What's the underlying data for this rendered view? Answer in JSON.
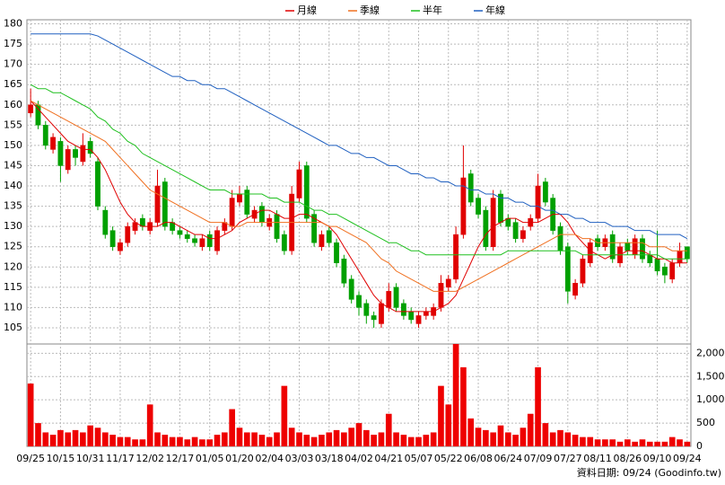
{
  "chart_data": [
    {
      "type": "candlestick",
      "categories": [
        "09/25",
        null,
        null,
        null,
        "10/15",
        null,
        null,
        null,
        "10/31",
        null,
        null,
        null,
        "11/17",
        null,
        null,
        null,
        "12/02",
        null,
        null,
        null,
        "12/17",
        null,
        null,
        null,
        "01/05",
        null,
        null,
        null,
        "01/20",
        null,
        null,
        null,
        "02/04",
        null,
        null,
        null,
        "03/03",
        null,
        null,
        null,
        "03/18",
        null,
        null,
        null,
        "04/02",
        null,
        null,
        null,
        "04/21",
        null,
        null,
        null,
        "05/07",
        null,
        null,
        null,
        "05/22",
        null,
        null,
        null,
        "06/08",
        null,
        null,
        null,
        "06/24",
        null,
        null,
        null,
        "07/09",
        null,
        null,
        null,
        "07/27",
        null,
        null,
        null,
        "08/11",
        null,
        null,
        null,
        "08/26",
        null,
        null,
        null,
        "09/10",
        null,
        null,
        null,
        "09/24"
      ],
      "open": [
        158,
        160,
        155,
        149,
        151,
        144,
        149,
        146,
        151,
        146,
        134,
        129,
        124,
        126,
        129,
        132,
        129,
        131,
        141,
        131,
        129,
        128,
        127,
        125,
        128,
        124,
        129,
        130,
        136,
        139,
        132,
        135,
        130,
        133,
        128,
        124,
        137,
        145,
        133,
        125,
        129,
        126,
        122,
        117,
        113,
        111,
        108,
        106,
        110,
        115,
        111,
        109,
        106,
        108,
        108,
        110,
        115,
        117,
        128,
        143,
        137,
        134,
        125,
        138,
        132,
        131,
        127,
        130,
        132,
        141,
        137,
        130,
        125,
        113,
        116,
        121,
        127,
        125,
        128,
        121,
        126,
        123,
        127,
        123,
        122,
        120,
        117,
        121,
        125
      ],
      "high": [
        164,
        161,
        156,
        153,
        152,
        150,
        150,
        153,
        152,
        147,
        135,
        130,
        127,
        131,
        132,
        133,
        132,
        144,
        142,
        132,
        130,
        129,
        128,
        128,
        129,
        130,
        132,
        139,
        140,
        140,
        135,
        136,
        133,
        134,
        129,
        140,
        146,
        146,
        134,
        129,
        130,
        127,
        123,
        118,
        114,
        112,
        109,
        112,
        116,
        116,
        112,
        110,
        109,
        110,
        111,
        118,
        118,
        130,
        150,
        144,
        138,
        135,
        139,
        139,
        133,
        132,
        130,
        133,
        143,
        142,
        138,
        131,
        126,
        117,
        123,
        127,
        128,
        128,
        129,
        126,
        127,
        128,
        128,
        124,
        129,
        121,
        122,
        126,
        125
      ],
      "low": [
        157,
        154,
        149,
        148,
        141,
        143,
        145,
        145,
        147,
        134,
        127,
        124,
        123,
        125,
        128,
        129,
        128,
        130,
        129,
        128,
        127,
        126,
        125,
        124,
        124,
        123,
        128,
        129,
        135,
        132,
        131,
        130,
        129,
        126,
        123,
        123,
        136,
        131,
        125,
        124,
        125,
        120,
        115,
        111,
        108,
        106,
        105,
        105,
        109,
        109,
        107,
        106,
        105,
        107,
        107,
        109,
        114,
        116,
        127,
        135,
        132,
        124,
        124,
        130,
        129,
        126,
        126,
        129,
        131,
        135,
        128,
        123,
        111,
        112,
        115,
        120,
        124,
        124,
        121,
        120,
        123,
        122,
        121,
        120,
        118,
        116,
        116,
        120,
        121
      ],
      "close": [
        160,
        155,
        150,
        152,
        145,
        149,
        147,
        150,
        148,
        135,
        128,
        125,
        126,
        130,
        131,
        130,
        131,
        140,
        130,
        129,
        128,
        127,
        126,
        127,
        125,
        129,
        131,
        137,
        138,
        133,
        134,
        131,
        132,
        127,
        124,
        138,
        144,
        132,
        126,
        128,
        126,
        121,
        116,
        112,
        110,
        108,
        107,
        111,
        114,
        110,
        108,
        107,
        108,
        109,
        110,
        116,
        117,
        128,
        142,
        136,
        133,
        125,
        137,
        131,
        130,
        127,
        129,
        132,
        140,
        136,
        129,
        124,
        114,
        116,
        122,
        126,
        125,
        127,
        122,
        125,
        124,
        127,
        122,
        121,
        119,
        118,
        121,
        124,
        122
      ],
      "up_color": "#e00000",
      "down_color": "#00a000",
      "series": [
        {
          "name": "月線",
          "color": "#e00000",
          "values": [
            161,
            159,
            157,
            155,
            153,
            151,
            150,
            149,
            149,
            147,
            144,
            140,
            136,
            133,
            131,
            130,
            130,
            130,
            131,
            131,
            130,
            129,
            128,
            128,
            127,
            127,
            128,
            129,
            131,
            132,
            133,
            134,
            134,
            133,
            132,
            132,
            133,
            133,
            132,
            131,
            130,
            128,
            125,
            122,
            119,
            116,
            113,
            111,
            110,
            109,
            109,
            109,
            109,
            109,
            109,
            110,
            111,
            113,
            117,
            121,
            125,
            128,
            130,
            131,
            132,
            132,
            131,
            131,
            131,
            132,
            133,
            133,
            131,
            128,
            126,
            124,
            123,
            122,
            123,
            123,
            124,
            124,
            124,
            123,
            122,
            122,
            121,
            121,
            121
          ]
        },
        {
          "name": "季線",
          "color": "#f07020",
          "values": [
            161,
            160,
            159,
            158,
            157,
            156,
            155,
            154,
            153,
            152,
            151,
            149,
            147,
            145,
            143,
            141,
            139,
            138,
            137,
            136,
            135,
            134,
            133,
            132,
            131,
            131,
            131,
            130,
            130,
            131,
            131,
            131,
            131,
            131,
            131,
            131,
            131,
            131,
            131,
            131,
            130,
            130,
            129,
            128,
            127,
            126,
            124,
            122,
            121,
            119,
            118,
            117,
            116,
            115,
            114,
            114,
            114,
            114,
            115,
            116,
            117,
            118,
            119,
            120,
            121,
            122,
            123,
            124,
            125,
            126,
            127,
            128,
            128,
            128,
            127,
            127,
            126,
            126,
            126,
            126,
            126,
            126,
            126,
            125,
            125,
            125,
            124,
            124,
            124
          ]
        },
        {
          "name": "半年",
          "color": "#20c020",
          "values": [
            165,
            164,
            164,
            163,
            163,
            162,
            161,
            160,
            159,
            157,
            156,
            154,
            153,
            151,
            150,
            148,
            147,
            146,
            145,
            144,
            143,
            142,
            141,
            140,
            139,
            139,
            139,
            138,
            138,
            138,
            138,
            138,
            137,
            137,
            136,
            136,
            136,
            135,
            134,
            134,
            133,
            133,
            132,
            131,
            130,
            129,
            128,
            127,
            126,
            126,
            125,
            124,
            124,
            123,
            123,
            123,
            123,
            123,
            123,
            123,
            123,
            123,
            123,
            123,
            124,
            124,
            124,
            124,
            124,
            124,
            124,
            124,
            124,
            124,
            123,
            123,
            123,
            123,
            123,
            123,
            123,
            123,
            123,
            123,
            123,
            122,
            122,
            122,
            122
          ]
        },
        {
          "name": "年線",
          "color": "#2060c0",
          "values": [
            177.5,
            177.5,
            177.5,
            177.5,
            177.5,
            177.5,
            177.5,
            177.5,
            177.5,
            177,
            176,
            175,
            174,
            173,
            172,
            171,
            170,
            169,
            168,
            167,
            167,
            166,
            166,
            165,
            165,
            164,
            164,
            163,
            162,
            161,
            160,
            159,
            158,
            157,
            156,
            155,
            154,
            153,
            152,
            151,
            150,
            150,
            149,
            148,
            148,
            147,
            147,
            146,
            145,
            145,
            144,
            143,
            143,
            142,
            142,
            141,
            141,
            140,
            140,
            139,
            139,
            138,
            138,
            137,
            137,
            136,
            136,
            135,
            135,
            134,
            134,
            133,
            133,
            132,
            132,
            131,
            131,
            131,
            130,
            130,
            130,
            129,
            129,
            129,
            128,
            128,
            128,
            128,
            127
          ]
        }
      ],
      "ylim": [
        101,
        181
      ],
      "yticks": [
        105,
        110,
        115,
        120,
        125,
        130,
        135,
        140,
        145,
        150,
        155,
        160,
        165,
        170,
        175,
        180
      ],
      "grid": true
    },
    {
      "type": "bar",
      "color": "#ee0000",
      "values": [
        1350,
        500,
        300,
        250,
        350,
        300,
        350,
        300,
        450,
        400,
        300,
        250,
        200,
        200,
        150,
        150,
        900,
        300,
        250,
        200,
        200,
        150,
        200,
        150,
        150,
        250,
        300,
        800,
        400,
        300,
        300,
        250,
        200,
        300,
        1300,
        400,
        300,
        250,
        200,
        250,
        300,
        350,
        300,
        400,
        500,
        350,
        250,
        300,
        700,
        300,
        250,
        200,
        200,
        250,
        300,
        1300,
        900,
        2200,
        1700,
        600,
        400,
        350,
        300,
        450,
        300,
        250,
        400,
        700,
        1700,
        500,
        300,
        350,
        300,
        250,
        200,
        200,
        150,
        150,
        150,
        100,
        150,
        100,
        150,
        100,
        100,
        100,
        200,
        150,
        100
      ],
      "ylim": [
        0,
        2200
      ],
      "yticks": [
        0,
        500,
        {
          "value": 1000,
          "label": "1,000"
        },
        {
          "value": 1500,
          "label": "1,500"
        },
        {
          "value": 2000,
          "label": "2,000"
        }
      ],
      "grid": true,
      "source": "資料日期: 09/24 (Goodinfo.tw)"
    }
  ]
}
